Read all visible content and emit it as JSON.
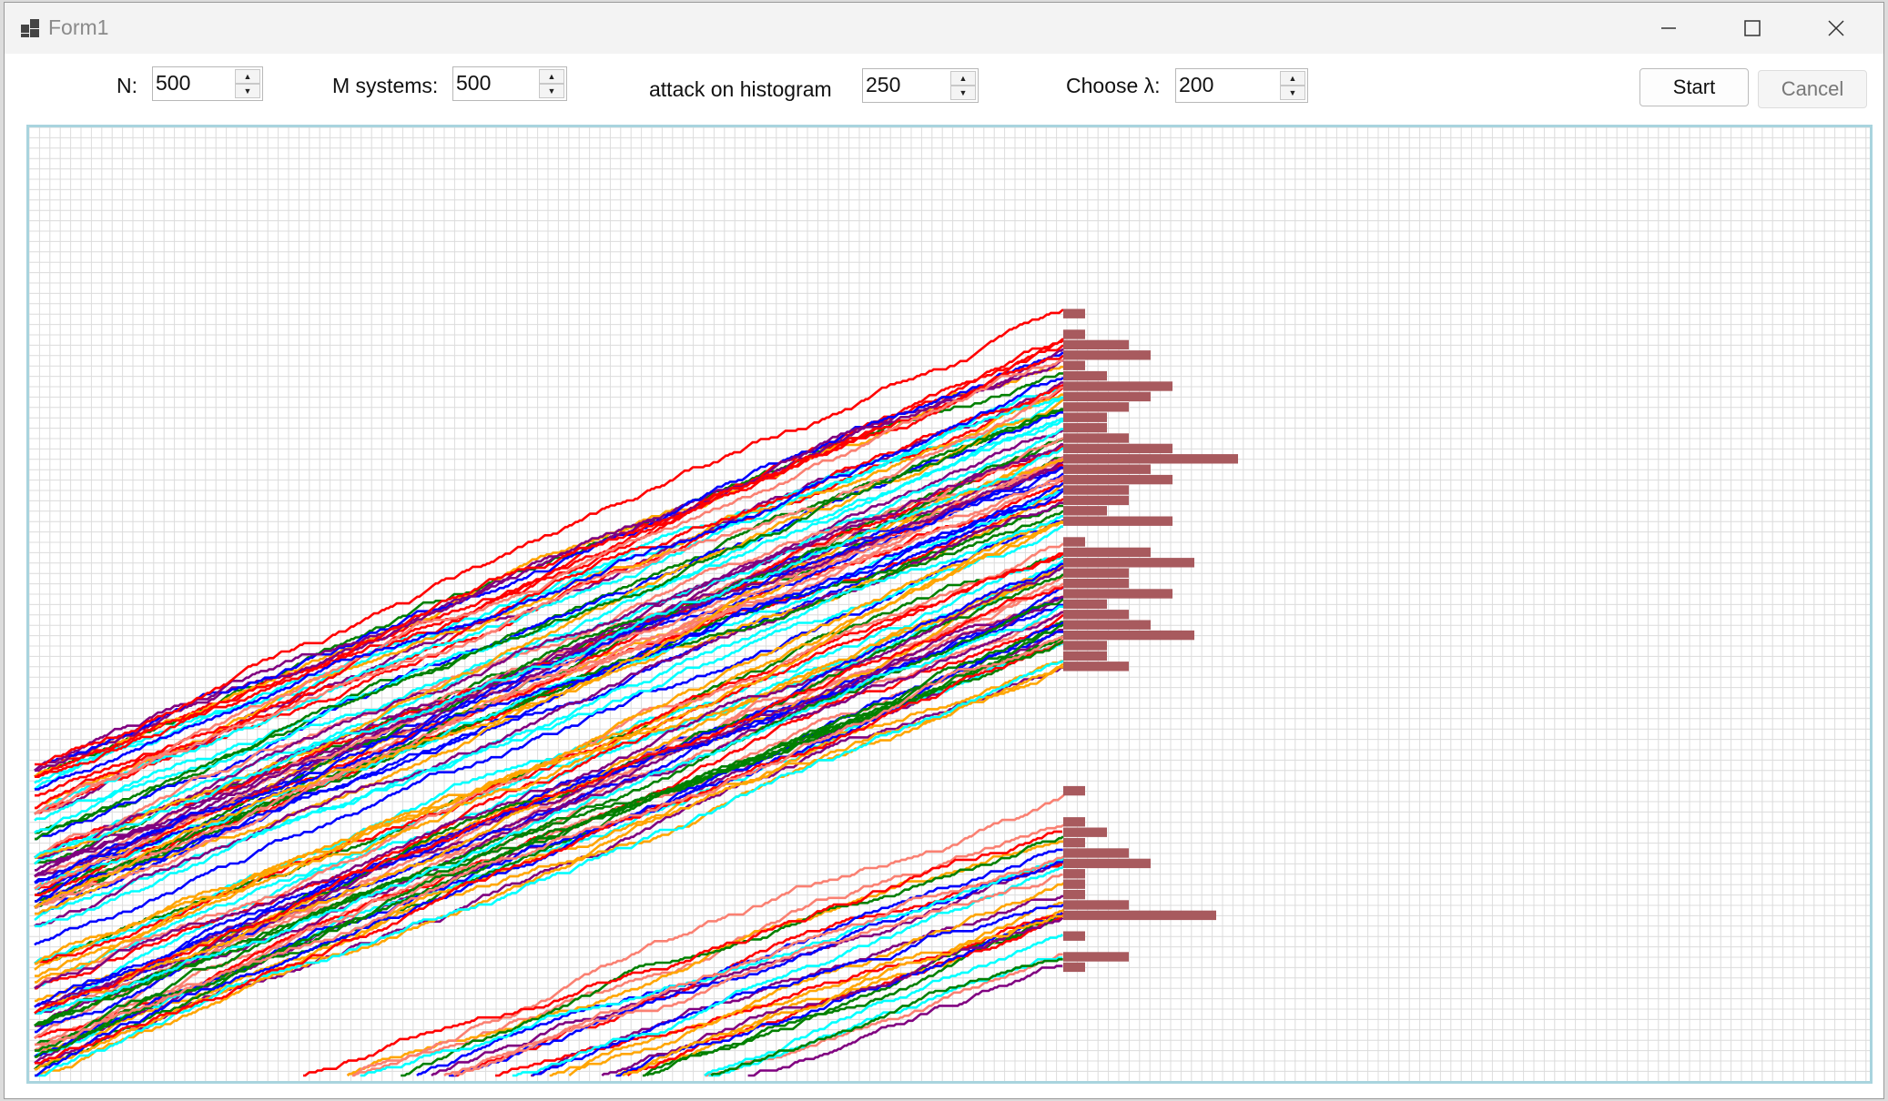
{
  "window": {
    "title": "Form1",
    "minimize_icon": "minimize-icon",
    "maximize_icon": "maximize-icon",
    "close_icon": "close-icon"
  },
  "controls": {
    "n": {
      "label": "N:",
      "value": "500"
    },
    "m_systems": {
      "label": "M systems:",
      "value": "500"
    },
    "attack": {
      "label": "attack on histogram",
      "value": "250"
    },
    "lambda": {
      "label": "Choose λ:",
      "value": "200"
    },
    "start_label": "Start",
    "cancel_label": "Cancel"
  },
  "colors": {
    "grid": "#dcdcdc",
    "histogram": "#a85a5e",
    "frame": "#a9d4de",
    "paths": [
      "#008000",
      "#800080",
      "#ff0000",
      "#0000ff",
      "#00ffff",
      "#ffa500",
      "#fa8072"
    ]
  },
  "simulation": {
    "steps": 500,
    "paths_drawn": 500,
    "attack_step": 250,
    "lambda": 200
  }
}
